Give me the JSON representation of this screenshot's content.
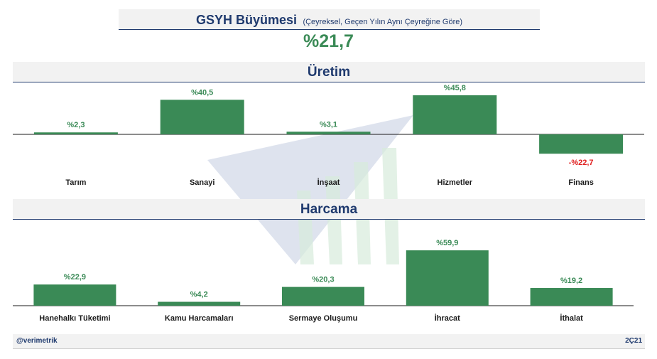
{
  "header": {
    "title": "GSYH Büyümesi",
    "subtitle": "(Çeyreksel, Geçen Yılın Aynı Çeyreğine Göre)",
    "headline_value": "%21,7"
  },
  "colors": {
    "positive": "#3a8a56",
    "negative": "#e02020",
    "navy": "#1f3a6e",
    "panel": "#f2f2f2"
  },
  "chart_data": [
    {
      "type": "bar",
      "title": "Üretim",
      "categories": [
        "Tarım",
        "Sanayi",
        "İnşaat",
        "Hizmetler",
        "Finans"
      ],
      "values": [
        2.3,
        40.5,
        3.1,
        45.8,
        -22.7
      ],
      "labels": [
        "%2,3",
        "%40,5",
        "%3,1",
        "%45,8",
        "-%22,7"
      ],
      "ylim": [
        -25,
        50
      ],
      "grid": false,
      "legend": "none"
    },
    {
      "type": "bar",
      "title": "Harcama",
      "categories": [
        "Hanehalkı Tüketimi",
        "Kamu Harcamaları",
        "Sermaye Oluşumu",
        "İhracat",
        "İthalat"
      ],
      "values": [
        22.9,
        4.2,
        20.3,
        59.9,
        19.2
      ],
      "labels": [
        "%22,9",
        "%4,2",
        "%20,3",
        "%59,9",
        "%19,2"
      ],
      "ylim": [
        0,
        65
      ],
      "grid": false,
      "legend": "none"
    }
  ],
  "footer": {
    "handle": "@verimetrik",
    "period": "2Ç21"
  }
}
